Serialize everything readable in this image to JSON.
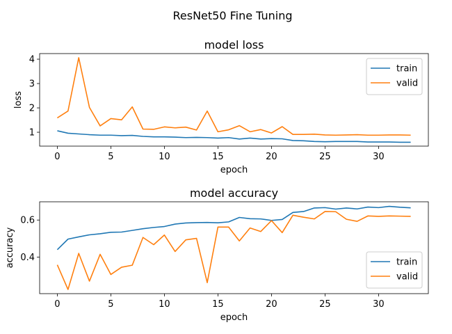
{
  "figure": {
    "title": "ResNet50 Fine Tuning"
  },
  "colors": {
    "train": "#1f77b4",
    "valid": "#ff7f0e"
  },
  "chart_data": [
    {
      "type": "line",
      "title": "model loss",
      "xlabel": "epoch",
      "ylabel": "loss",
      "xlim": [
        -1.65,
        34.65
      ],
      "ylim": [
        0.43,
        4.23
      ],
      "xticks": [
        0,
        5,
        10,
        15,
        20,
        25,
        30
      ],
      "yticks": [
        1,
        2,
        3,
        4
      ],
      "legend": "top-right",
      "x": [
        0,
        1,
        2,
        3,
        4,
        5,
        6,
        7,
        8,
        9,
        10,
        11,
        12,
        13,
        14,
        15,
        16,
        17,
        18,
        19,
        20,
        21,
        22,
        23,
        24,
        25,
        26,
        27,
        28,
        29,
        30,
        31,
        32,
        33
      ],
      "series": [
        {
          "name": "train",
          "values": [
            1.06,
            0.96,
            0.93,
            0.9,
            0.88,
            0.88,
            0.86,
            0.87,
            0.83,
            0.81,
            0.81,
            0.8,
            0.78,
            0.79,
            0.78,
            0.76,
            0.78,
            0.72,
            0.76,
            0.72,
            0.74,
            0.73,
            0.66,
            0.65,
            0.62,
            0.61,
            0.62,
            0.62,
            0.62,
            0.6,
            0.6,
            0.6,
            0.59,
            0.59
          ]
        },
        {
          "name": "valid",
          "values": [
            1.59,
            1.87,
            4.06,
            2.02,
            1.26,
            1.56,
            1.51,
            2.04,
            1.13,
            1.12,
            1.22,
            1.18,
            1.21,
            1.09,
            1.87,
            1.02,
            1.1,
            1.27,
            1.02,
            1.11,
            0.97,
            1.23,
            0.91,
            0.91,
            0.92,
            0.89,
            0.88,
            0.89,
            0.9,
            0.88,
            0.88,
            0.89,
            0.89,
            0.88
          ]
        }
      ]
    },
    {
      "type": "line",
      "title": "model accuracy",
      "xlabel": "epoch",
      "ylabel": "accuracy",
      "xlim": [
        -1.65,
        34.65
      ],
      "ylim": [
        0.2025,
        0.6985
      ],
      "xticks": [
        0,
        5,
        10,
        15,
        20,
        25,
        30
      ],
      "yticks": [
        0.4,
        0.6
      ],
      "legend": "bottom-right",
      "x": [
        0,
        1,
        2,
        3,
        4,
        5,
        6,
        7,
        8,
        9,
        10,
        11,
        12,
        13,
        14,
        15,
        16,
        17,
        18,
        19,
        20,
        21,
        22,
        23,
        24,
        25,
        26,
        27,
        28,
        29,
        30,
        31,
        32,
        33
      ],
      "series": [
        {
          "name": "train",
          "values": [
            0.44,
            0.497,
            0.509,
            0.52,
            0.526,
            0.534,
            0.535,
            0.544,
            0.553,
            0.56,
            0.565,
            0.578,
            0.584,
            0.586,
            0.587,
            0.585,
            0.59,
            0.614,
            0.607,
            0.606,
            0.598,
            0.603,
            0.641,
            0.646,
            0.665,
            0.667,
            0.659,
            0.665,
            0.66,
            0.67,
            0.667,
            0.674,
            0.669,
            0.666
          ]
        },
        {
          "name": "valid",
          "values": [
            0.358,
            0.225,
            0.42,
            0.27,
            0.415,
            0.306,
            0.345,
            0.356,
            0.506,
            0.467,
            0.519,
            0.43,
            0.493,
            0.501,
            0.262,
            0.562,
            0.562,
            0.487,
            0.557,
            0.538,
            0.597,
            0.532,
            0.626,
            0.615,
            0.606,
            0.646,
            0.645,
            0.604,
            0.593,
            0.622,
            0.62,
            0.622,
            0.621,
            0.62
          ]
        }
      ]
    }
  ]
}
